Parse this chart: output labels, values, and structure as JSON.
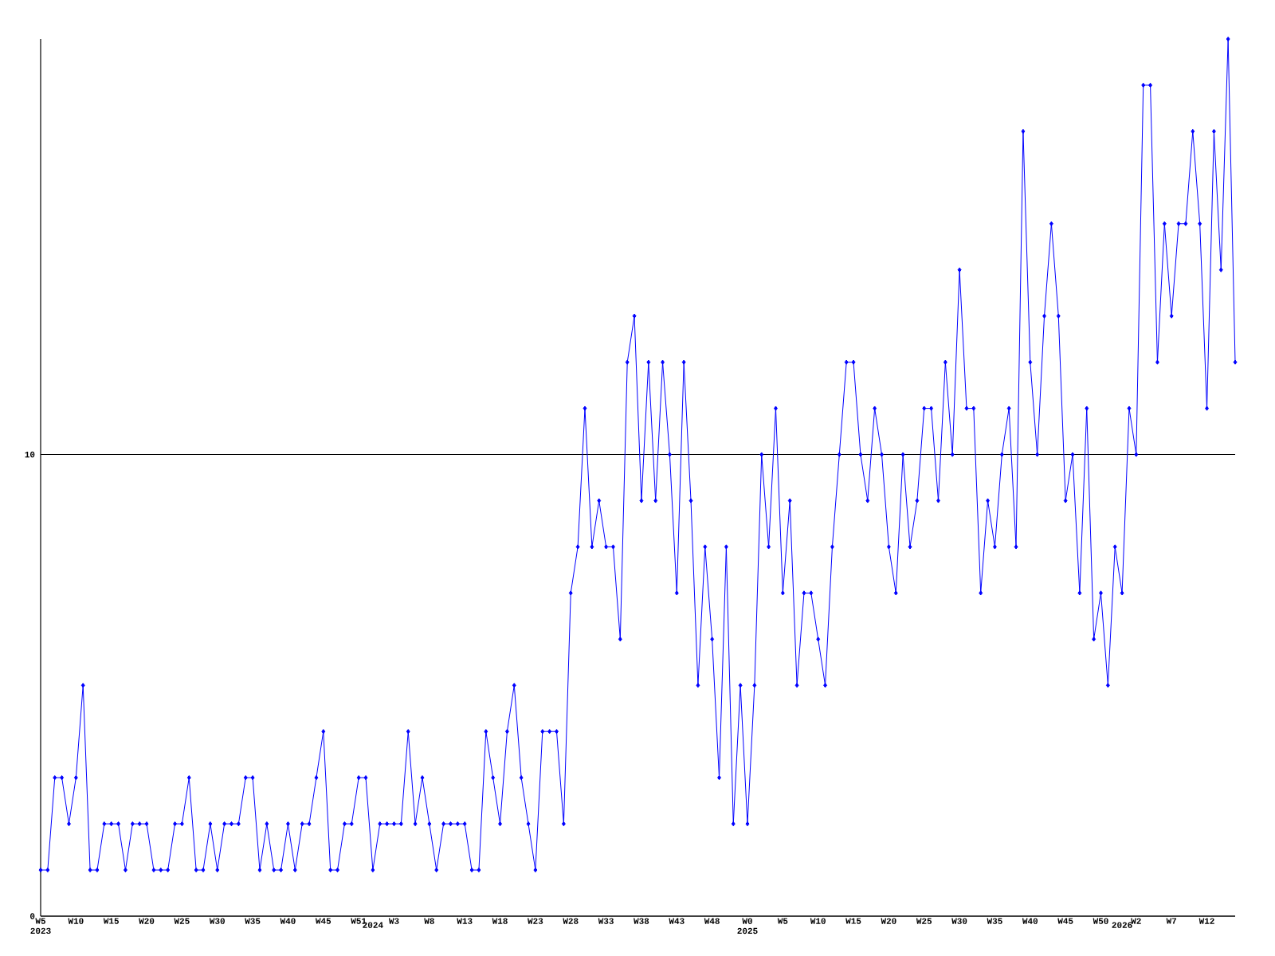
{
  "chart_data": {
    "type": "line",
    "categories": [
      "W5 2023",
      null,
      null,
      null,
      null,
      "W10",
      null,
      null,
      null,
      null,
      "W15",
      null,
      null,
      null,
      null,
      "W20",
      null,
      null,
      null,
      null,
      "W25",
      null,
      null,
      null,
      null,
      "W30",
      null,
      null,
      null,
      null,
      "W35",
      null,
      null,
      null,
      null,
      "W40",
      null,
      null,
      null,
      null,
      "W45",
      null,
      null,
      null,
      null,
      "W51",
      null,
      "2024",
      null,
      null,
      "W3",
      null,
      null,
      null,
      null,
      "W8",
      null,
      null,
      null,
      null,
      "W13",
      null,
      null,
      null,
      null,
      "W18",
      null,
      null,
      null,
      null,
      "W23",
      null,
      null,
      null,
      null,
      "W28",
      null,
      null,
      null,
      null,
      "W33",
      null,
      null,
      null,
      null,
      "W38",
      null,
      null,
      null,
      null,
      "W43",
      null,
      null,
      null,
      null,
      "W48",
      null,
      null,
      null,
      null,
      "W0 2025",
      null,
      null,
      null,
      null,
      "W5",
      null,
      null,
      null,
      null,
      "W10",
      null,
      null,
      null,
      null,
      "W15",
      null,
      null,
      null,
      null,
      "W20",
      null,
      null,
      null,
      null,
      "W25",
      null,
      null,
      null,
      null,
      "W30",
      null,
      null,
      null,
      null,
      "W35",
      null,
      null,
      null,
      null,
      "W40",
      null,
      null,
      null,
      null,
      "W45",
      null,
      null,
      null,
      null,
      "W50",
      null,
      null,
      "2026",
      null,
      "W2",
      null,
      null,
      null,
      null,
      "W7",
      null,
      null,
      null,
      null,
      "W12",
      null,
      null,
      null,
      null
    ],
    "series": [
      {
        "color": "#0000ff",
        "values": [
          1,
          1,
          3,
          3,
          2,
          3,
          5,
          1,
          1,
          2,
          2,
          2,
          1,
          2,
          2,
          2,
          1,
          1,
          1,
          2,
          2,
          3,
          1,
          1,
          2,
          1,
          2,
          2,
          2,
          3,
          3,
          1,
          2,
          1,
          1,
          2,
          1,
          2,
          2,
          3,
          4,
          1,
          1,
          2,
          2,
          3,
          3,
          1,
          2,
          2,
          2,
          2,
          4,
          2,
          3,
          2,
          1,
          2,
          2,
          2,
          2,
          1,
          1,
          4,
          3,
          2,
          4,
          5,
          3,
          2,
          1,
          4,
          4,
          4,
          2,
          7,
          8,
          11,
          8,
          9,
          8,
          8,
          6,
          12,
          13,
          9,
          12,
          9,
          12,
          10,
          7,
          12,
          9,
          5,
          8,
          6,
          3,
          8,
          2,
          5,
          2,
          5,
          10,
          8,
          11,
          7,
          9,
          5,
          7,
          7,
          6,
          5,
          8,
          10,
          12,
          12,
          10,
          9,
          11,
          10,
          8,
          7,
          10,
          8,
          9,
          11,
          11,
          9,
          12,
          10,
          14,
          11,
          11,
          7,
          9,
          8,
          10,
          11,
          8,
          17,
          12,
          10,
          13,
          15,
          13,
          9,
          10,
          7,
          11,
          6,
          7,
          5,
          8,
          7,
          11,
          10,
          18,
          18,
          12,
          15,
          13,
          15,
          15,
          17,
          15,
          11,
          17,
          14,
          19,
          12
        ]
      }
    ],
    "ylim": [
      0,
      19
    ],
    "yticks": [
      0,
      10
    ],
    "grid": "y",
    "marker": "diamond",
    "line_style": "solid"
  }
}
